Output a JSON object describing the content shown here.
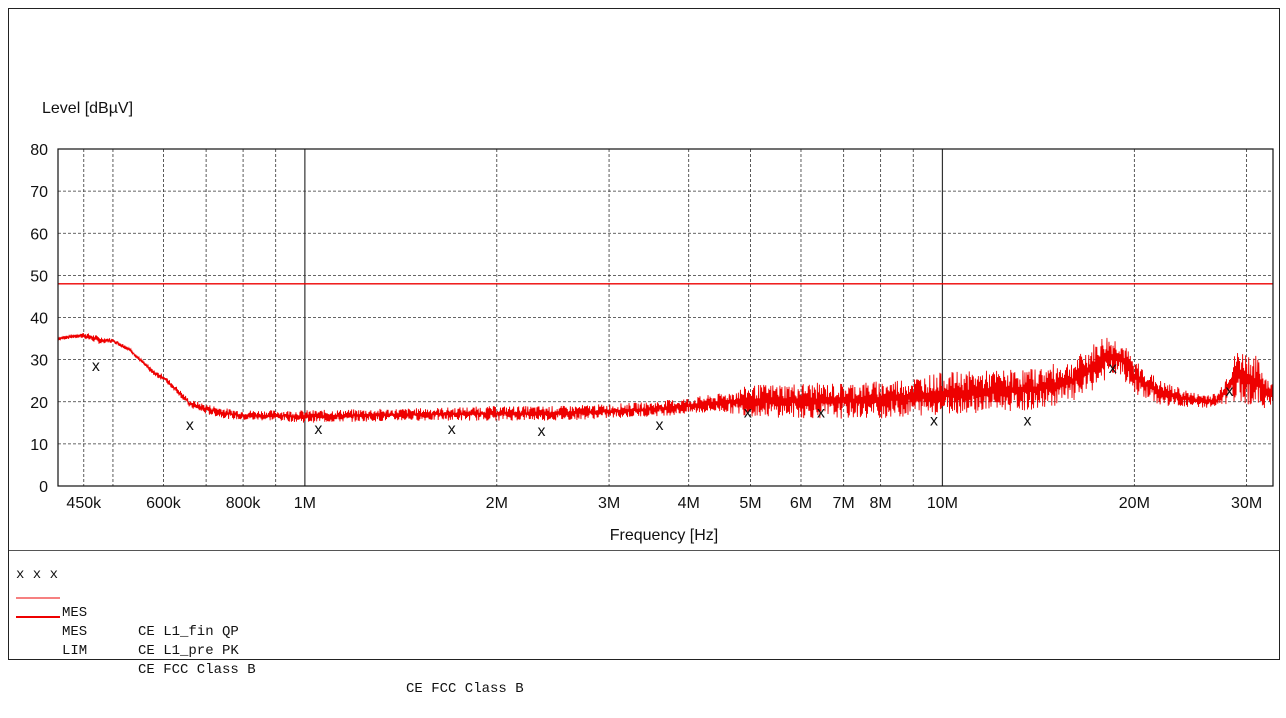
{
  "chart_data": {
    "type": "line",
    "ylabel": "Level [dBµV]",
    "xlabel": "Frequency [Hz]",
    "x_scale": "log",
    "xlim": [
      410000,
      33000000
    ],
    "ylim": [
      0,
      80
    ],
    "grid": true,
    "y_ticks": [
      0,
      10,
      20,
      30,
      40,
      50,
      60,
      70,
      80
    ],
    "x_tick_values": [
      450000,
      600000,
      800000,
      1000000,
      2000000,
      3000000,
      4000000,
      5000000,
      6000000,
      7000000,
      8000000,
      10000000,
      20000000,
      30000000
    ],
    "x_tick_labels": [
      "450k",
      "600k",
      "800k",
      "1M",
      "2M",
      "3M",
      "4M",
      "5M",
      "6M",
      "7M",
      "8M",
      "10M",
      "20M",
      "30M"
    ],
    "minor_gridlines": [
      500000,
      700000,
      900000,
      9000000
    ],
    "series": [
      {
        "name": "MES CE L1_pre PK",
        "kind": "peak-trace",
        "color": "#ee0000",
        "envelope": {
          "x": [
            410000,
            430000,
            450000,
            480000,
            500000,
            530000,
            560000,
            580000,
            600000,
            630000,
            660000,
            700000,
            750000,
            800000,
            900000,
            1000000,
            1500000,
            2000000,
            2500000,
            3000000,
            3500000,
            4000000,
            4500000,
            5000000,
            6000000,
            7000000,
            8000000,
            9000000,
            10000000,
            12000000,
            14000000,
            16000000,
            17000000,
            18000000,
            19000000,
            20000000,
            22000000,
            25000000,
            27000000,
            29000000,
            30000000,
            31000000,
            33000000
          ],
          "low": [
            34.5,
            35,
            35,
            33.5,
            34,
            32,
            28.5,
            26,
            25,
            22,
            18.5,
            17,
            16,
            15.5,
            15.5,
            15,
            15.5,
            15.5,
            15.5,
            16,
            16.5,
            17,
            17.5,
            16.5,
            16,
            16,
            16,
            16.5,
            17,
            17.5,
            18,
            20,
            22,
            25,
            26,
            22,
            19,
            18.5,
            18.5,
            20,
            19.5,
            18.5,
            18.5
          ],
          "high": [
            35.5,
            36,
            36.5,
            35.5,
            35,
            33,
            29.5,
            27.5,
            26.5,
            23.5,
            20.5,
            19.5,
            18.5,
            18,
            18,
            18,
            18.5,
            19,
            19,
            19.5,
            20,
            21,
            22,
            24,
            24.5,
            24.5,
            25,
            26,
            27,
            27.5,
            28,
            30,
            33,
            36,
            35,
            30,
            25,
            22,
            22,
            32.5,
            32,
            31,
            24
          ]
        }
      },
      {
        "name": "MES CE L1_fin QP",
        "kind": "markers",
        "marker": "x",
        "x": [
          470000,
          660000,
          1050000,
          1700000,
          2350000,
          3600000,
          4950000,
          6450000,
          9700000,
          13600000,
          18500000,
          28200000
        ],
        "y": [
          28.5,
          14.5,
          13.5,
          13.5,
          13,
          14.5,
          17.5,
          17.5,
          15.5,
          15.5,
          28,
          22.5
        ]
      },
      {
        "name": "LIM CE FCC Class B",
        "kind": "limit",
        "color": "#ee0000",
        "x": [
          410000,
          33000000
        ],
        "y": [
          48,
          48
        ]
      }
    ]
  },
  "legend": {
    "rows": [
      {
        "mark": "x x x",
        "type": "MES",
        "name": "CE L1_fin QP",
        "extra": ""
      },
      {
        "mark": "thin-line",
        "type": "MES",
        "name": "CE L1_pre PK",
        "extra": ""
      },
      {
        "mark": "thick-line",
        "type": "LIM",
        "name": "CE FCC Class B",
        "extra": "CE FCC Class B"
      }
    ]
  },
  "colors": {
    "trace": "#ee0000",
    "grid": "#333333",
    "text": "#111111"
  }
}
